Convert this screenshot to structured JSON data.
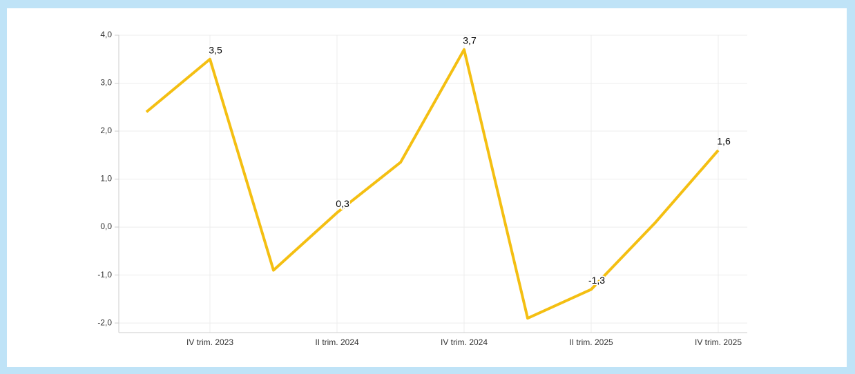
{
  "chart_data": {
    "type": "line",
    "categories": [
      null,
      "IV trim. 2023",
      null,
      "II trim. 2024",
      null,
      "IV trim. 2024",
      null,
      "II trim. 2025",
      null,
      "IV trim. 2025"
    ],
    "series": [
      {
        "name": null,
        "color": "#f4bf12",
        "values": [
          2.4,
          3.5,
          -0.9,
          0.3,
          1.35,
          3.7,
          -1.9,
          -1.3,
          0.08,
          1.6
        ],
        "value_labels": [
          null,
          "3,5",
          null,
          "0,3",
          null,
          "3,7",
          null,
          "-1,3",
          null,
          "1,6"
        ]
      }
    ],
    "ylim": [
      -2.2,
      4.0
    ],
    "yticks": [
      {
        "value": -2,
        "label": "-2,0"
      },
      {
        "value": -1,
        "label": "-1,0"
      },
      {
        "value": 0,
        "label": "0,0"
      },
      {
        "value": 1,
        "label": "1,0"
      },
      {
        "value": 2,
        "label": "2,0"
      },
      {
        "value": 3,
        "label": "3,0"
      },
      {
        "value": 4,
        "label": "4,0"
      }
    ],
    "grid": true
  }
}
